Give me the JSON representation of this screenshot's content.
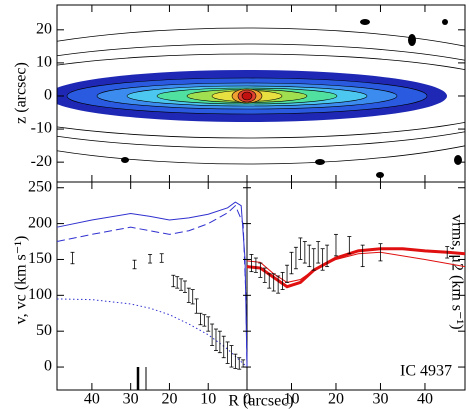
{
  "chart_data": [
    {
      "type": "contour",
      "ylabel": "z (arcsec)",
      "xlim": [
        -49,
        49
      ],
      "xticks": [
        -40,
        -30,
        -20,
        -10,
        0,
        10,
        20,
        30,
        40
      ],
      "ylim": [
        -26,
        27.5
      ],
      "yticks": [
        -20,
        -10,
        0,
        10,
        20
      ]
    },
    {
      "type": "line",
      "xlabel": "R (arcsec)",
      "ylabel": "v, vc (km s⁻¹)",
      "y2label": "vrms, μ2 (km s⁻¹)",
      "annotation": "IC 4937",
      "xlim": [
        -49,
        49
      ],
      "xticks": [
        {
          "value": -40,
          "label": "40"
        },
        {
          "value": -30,
          "label": "30"
        },
        {
          "value": -20,
          "label": "20"
        },
        {
          "value": -10,
          "label": "10"
        },
        0,
        10,
        20,
        30,
        40
      ],
      "ylim": [
        -32,
        258
      ],
      "yticks": [
        0,
        50,
        100,
        150,
        200,
        250
      ],
      "series": [
        {
          "color": "#3030d0",
          "dash": "solid",
          "width": 1,
          "x": [
            -49,
            -40,
            -30,
            -25,
            -20,
            -15,
            -10,
            -5,
            -3,
            -1.5,
            -0.5,
            0
          ],
          "values": [
            195,
            205,
            214,
            210,
            205,
            208,
            213,
            222,
            230,
            225,
            150,
            0
          ]
        },
        {
          "color": "#3030d0",
          "dash": "dashed",
          "width": 1,
          "x": [
            -49,
            -40,
            -30,
            -25,
            -20,
            -15,
            -10,
            -5,
            -3,
            -1,
            -0.3,
            0
          ],
          "values": [
            175,
            185,
            195,
            190,
            185,
            190,
            200,
            215,
            225,
            200,
            100,
            0
          ]
        },
        {
          "color": "#3030d0",
          "dash": "dotted",
          "width": 1,
          "x": [
            -49,
            -40,
            -30,
            -25,
            -20,
            -15,
            -10,
            -5,
            -2,
            0
          ],
          "values": [
            95,
            94,
            88,
            82,
            73,
            60,
            45,
            25,
            10,
            0
          ]
        },
        {
          "color": "#e01010",
          "dash": "solid",
          "width": 1,
          "x": [
            0,
            3,
            6,
            9,
            12,
            15,
            20,
            25,
            30,
            40,
            49
          ],
          "values": [
            148,
            146,
            130,
            118,
            122,
            135,
            150,
            158,
            160,
            150,
            140
          ]
        },
        {
          "color": "#e01010",
          "dash": "solid",
          "width": 3,
          "x": [
            0,
            3,
            6,
            9,
            12,
            15,
            20,
            25,
            30,
            35,
            40,
            45,
            49
          ],
          "values": [
            140,
            138,
            125,
            112,
            118,
            135,
            152,
            162,
            165,
            165,
            162,
            160,
            158
          ]
        },
        {
          "type": "errorbar",
          "color": "#000000",
          "x": [
            -45,
            -29,
            -25,
            -22,
            -19,
            -18,
            -17,
            -16,
            -15,
            -14,
            -13,
            -12,
            -11,
            -10,
            -9,
            -8,
            -7,
            -6,
            -5,
            -4,
            -3,
            -2,
            -1
          ],
          "values": [
            152,
            143,
            151,
            152,
            120,
            118,
            115,
            112,
            100,
            98,
            85,
            67,
            65,
            60,
            45,
            38,
            35,
            28,
            20,
            15,
            8,
            5,
            5
          ],
          "errors": [
            8,
            6,
            6,
            6,
            8,
            8,
            8,
            8,
            10,
            10,
            10,
            8,
            8,
            10,
            15,
            15,
            15,
            15,
            15,
            15,
            10,
            8,
            5
          ]
        },
        {
          "type": "errorbar",
          "color": "#000000",
          "x": [
            1,
            2,
            3,
            4,
            5,
            6,
            7,
            8,
            9,
            10,
            11,
            12,
            13,
            14,
            15,
            16,
            17,
            18,
            20,
            23,
            26,
            30,
            45
          ],
          "values": [
            145,
            142,
            135,
            128,
            120,
            118,
            115,
            120,
            130,
            145,
            152,
            165,
            160,
            155,
            150,
            160,
            150,
            155,
            170,
            170,
            155,
            160,
            160
          ],
          "errors": [
            12,
            10,
            10,
            10,
            10,
            12,
            12,
            12,
            12,
            15,
            15,
            15,
            15,
            15,
            15,
            15,
            15,
            15,
            15,
            12,
            15,
            12,
            8
          ]
        }
      ]
    }
  ]
}
